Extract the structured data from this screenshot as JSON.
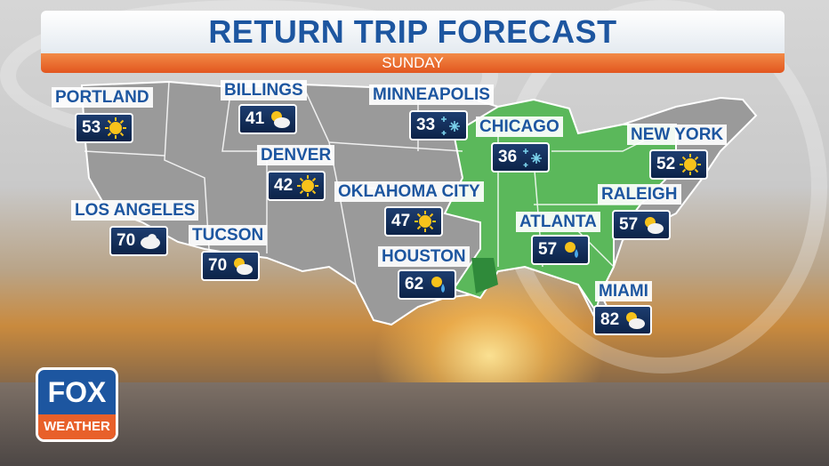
{
  "header": {
    "title": "RETURN TRIP FORECAST",
    "subtitle": "SUNDAY"
  },
  "colors": {
    "title": "#1d56a0",
    "subtitle_bar": "#e2561f",
    "temp_box": "#0c2348",
    "rain_area": "#5bb85b",
    "map_land": "#9a9a9a"
  },
  "cities": [
    {
      "name": "PORTLAND",
      "temp": "53",
      "icon": "sun-icon"
    },
    {
      "name": "BILLINGS",
      "temp": "41",
      "icon": "partly-cloudy-icon"
    },
    {
      "name": "DENVER",
      "temp": "42",
      "icon": "sun-icon"
    },
    {
      "name": "LOS ANGELES",
      "temp": "70",
      "icon": "cloud-icon"
    },
    {
      "name": "TUCSON",
      "temp": "70",
      "icon": "partly-cloudy-icon"
    },
    {
      "name": "MINNEAPOLIS",
      "temp": "33",
      "icon": "snow-icon"
    },
    {
      "name": "CHICAGO",
      "temp": "36",
      "icon": "snow-icon"
    },
    {
      "name": "OKLAHOMA CITY",
      "temp": "47",
      "icon": "sun-icon"
    },
    {
      "name": "HOUSTON",
      "temp": "62",
      "icon": "sun-rain-icon"
    },
    {
      "name": "ATLANTA",
      "temp": "57",
      "icon": "sun-rain-icon"
    },
    {
      "name": "NEW YORK",
      "temp": "52",
      "icon": "sun-icon"
    },
    {
      "name": "RALEIGH",
      "temp": "57",
      "icon": "partly-cloudy-icon"
    },
    {
      "name": "MIAMI",
      "temp": "82",
      "icon": "partly-cloudy-icon"
    }
  ],
  "logo": {
    "top": "FOX",
    "bottom": "WEATHER"
  }
}
